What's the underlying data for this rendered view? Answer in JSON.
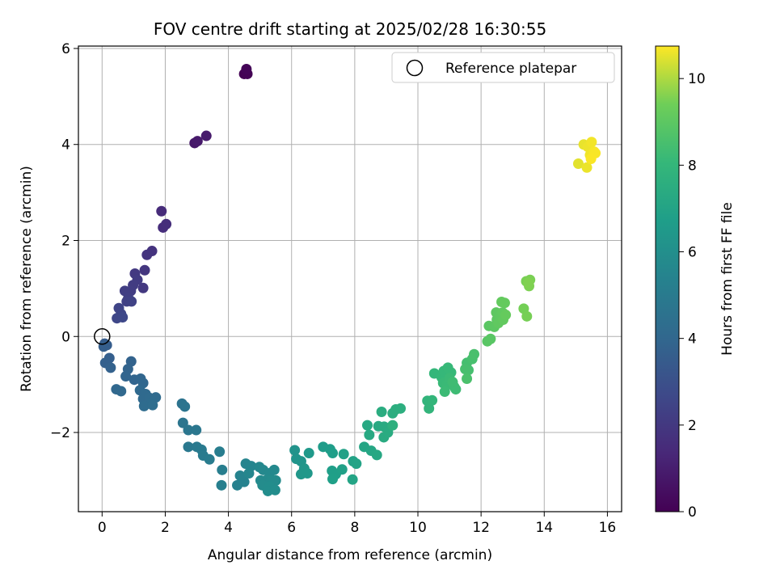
{
  "chart_data": {
    "type": "scatter",
    "title": "FOV centre drift starting at 2025/02/28 16:30:55",
    "xlabel": "Angular distance from reference (arcmin)",
    "ylabel": "Rotation from reference (arcmin)",
    "xlim": [
      -0.75,
      16.45
    ],
    "ylim": [
      -3.65,
      6.05
    ],
    "xticks": [
      0,
      2,
      4,
      6,
      8,
      10,
      12,
      14,
      16
    ],
    "yticks": [
      -2,
      0,
      2,
      4,
      6
    ],
    "grid": true,
    "legend": {
      "position": "top-right",
      "entries": [
        "Reference platepar"
      ]
    },
    "reference_point": {
      "x": 0,
      "y": 0,
      "label": "Reference platepar"
    },
    "colorbar": {
      "label": "Hours from first FF file",
      "min": 0,
      "max": 10.75,
      "ticks": [
        0,
        2,
        4,
        6,
        8,
        10
      ],
      "colormap": "viridis"
    },
    "points": [
      {
        "x": 4.5,
        "y": 5.47,
        "c": 0.0
      },
      {
        "x": 4.6,
        "y": 5.47,
        "c": 0.05
      },
      {
        "x": 4.57,
        "y": 5.57,
        "c": 0.1
      },
      {
        "x": 2.93,
        "y": 4.03,
        "c": 0.8
      },
      {
        "x": 3.02,
        "y": 4.07,
        "c": 0.85
      },
      {
        "x": 3.3,
        "y": 4.18,
        "c": 0.9
      },
      {
        "x": 1.88,
        "y": 2.61,
        "c": 1.5
      },
      {
        "x": 1.93,
        "y": 2.27,
        "c": 1.55
      },
      {
        "x": 2.03,
        "y": 2.34,
        "c": 1.6
      },
      {
        "x": 1.58,
        "y": 1.78,
        "c": 1.8
      },
      {
        "x": 1.42,
        "y": 1.7,
        "c": 1.85
      },
      {
        "x": 1.35,
        "y": 1.38,
        "c": 1.9
      },
      {
        "x": 1.3,
        "y": 1.01,
        "c": 2.0
      },
      {
        "x": 1.04,
        "y": 1.31,
        "c": 2.05
      },
      {
        "x": 1.12,
        "y": 1.18,
        "c": 2.1
      },
      {
        "x": 0.98,
        "y": 1.07,
        "c": 2.15
      },
      {
        "x": 0.91,
        "y": 0.95,
        "c": 2.2
      },
      {
        "x": 0.72,
        "y": 0.95,
        "c": 2.25
      },
      {
        "x": 0.83,
        "y": 0.8,
        "c": 2.3
      },
      {
        "x": 0.78,
        "y": 0.73,
        "c": 2.35
      },
      {
        "x": 0.93,
        "y": 0.73,
        "c": 2.4
      },
      {
        "x": 0.53,
        "y": 0.59,
        "c": 2.5
      },
      {
        "x": 0.6,
        "y": 0.47,
        "c": 2.55
      },
      {
        "x": 0.47,
        "y": 0.38,
        "c": 2.6
      },
      {
        "x": 0.65,
        "y": 0.4,
        "c": 2.65
      },
      {
        "x": 0.08,
        "y": -0.15,
        "c": 3.5
      },
      {
        "x": 0.15,
        "y": -0.18,
        "c": 3.55
      },
      {
        "x": 0.05,
        "y": -0.21,
        "c": 3.6
      },
      {
        "x": 0.23,
        "y": -0.45,
        "c": 3.65
      },
      {
        "x": 0.1,
        "y": -0.55,
        "c": 3.7
      },
      {
        "x": 0.27,
        "y": -0.65,
        "c": 3.75
      },
      {
        "x": 0.92,
        "y": -0.52,
        "c": 3.8
      },
      {
        "x": 0.82,
        "y": -0.68,
        "c": 3.85
      },
      {
        "x": 0.75,
        "y": -0.83,
        "c": 3.9
      },
      {
        "x": 1.02,
        "y": -0.9,
        "c": 3.92
      },
      {
        "x": 1.22,
        "y": -0.88,
        "c": 3.95
      },
      {
        "x": 1.3,
        "y": -0.97,
        "c": 4.0
      },
      {
        "x": 0.45,
        "y": -1.1,
        "c": 4.05
      },
      {
        "x": 0.6,
        "y": -1.14,
        "c": 4.08
      },
      {
        "x": 1.2,
        "y": -1.12,
        "c": 4.1
      },
      {
        "x": 1.38,
        "y": -1.2,
        "c": 4.12
      },
      {
        "x": 1.3,
        "y": -1.3,
        "c": 4.15
      },
      {
        "x": 1.5,
        "y": -1.28,
        "c": 4.18
      },
      {
        "x": 1.7,
        "y": -1.27,
        "c": 4.2
      },
      {
        "x": 1.58,
        "y": -1.37,
        "c": 4.22
      },
      {
        "x": 1.33,
        "y": -1.45,
        "c": 4.25
      },
      {
        "x": 1.6,
        "y": -1.43,
        "c": 4.28
      },
      {
        "x": 2.53,
        "y": -1.4,
        "c": 4.6
      },
      {
        "x": 2.62,
        "y": -1.46,
        "c": 4.65
      },
      {
        "x": 2.56,
        "y": -1.8,
        "c": 4.7
      },
      {
        "x": 2.73,
        "y": -1.95,
        "c": 4.75
      },
      {
        "x": 2.98,
        "y": -1.95,
        "c": 4.8
      },
      {
        "x": 2.73,
        "y": -2.3,
        "c": 4.85
      },
      {
        "x": 3.0,
        "y": -2.3,
        "c": 4.9
      },
      {
        "x": 3.15,
        "y": -2.36,
        "c": 4.95
      },
      {
        "x": 3.2,
        "y": -2.48,
        "c": 5.0
      },
      {
        "x": 3.4,
        "y": -2.56,
        "c": 5.05
      },
      {
        "x": 3.72,
        "y": -2.4,
        "c": 5.1
      },
      {
        "x": 3.8,
        "y": -2.78,
        "c": 5.15
      },
      {
        "x": 3.78,
        "y": -3.1,
        "c": 5.2
      },
      {
        "x": 4.28,
        "y": -3.1,
        "c": 5.3
      },
      {
        "x": 4.5,
        "y": -3.03,
        "c": 5.35
      },
      {
        "x": 4.37,
        "y": -2.9,
        "c": 5.4
      },
      {
        "x": 4.55,
        "y": -2.65,
        "c": 5.45
      },
      {
        "x": 4.72,
        "y": -2.7,
        "c": 5.5
      },
      {
        "x": 4.65,
        "y": -2.85,
        "c": 5.55
      },
      {
        "x": 4.98,
        "y": -2.72,
        "c": 5.6
      },
      {
        "x": 5.1,
        "y": -2.78,
        "c": 5.65
      },
      {
        "x": 5.3,
        "y": -2.85,
        "c": 5.7
      },
      {
        "x": 5.45,
        "y": -2.78,
        "c": 5.72
      },
      {
        "x": 5.02,
        "y": -3.0,
        "c": 5.75
      },
      {
        "x": 5.18,
        "y": -3.0,
        "c": 5.78
      },
      {
        "x": 5.35,
        "y": -3.0,
        "c": 5.8
      },
      {
        "x": 5.5,
        "y": -3.0,
        "c": 5.82
      },
      {
        "x": 5.08,
        "y": -3.1,
        "c": 5.85
      },
      {
        "x": 5.3,
        "y": -3.12,
        "c": 5.88
      },
      {
        "x": 5.25,
        "y": -3.22,
        "c": 5.9
      },
      {
        "x": 5.48,
        "y": -3.2,
        "c": 5.92
      },
      {
        "x": 6.1,
        "y": -2.37,
        "c": 6.2
      },
      {
        "x": 6.15,
        "y": -2.55,
        "c": 6.25
      },
      {
        "x": 6.3,
        "y": -2.6,
        "c": 6.3
      },
      {
        "x": 6.4,
        "y": -2.75,
        "c": 6.35
      },
      {
        "x": 6.3,
        "y": -2.87,
        "c": 6.4
      },
      {
        "x": 6.5,
        "y": -2.85,
        "c": 6.45
      },
      {
        "x": 6.55,
        "y": -2.43,
        "c": 6.5
      },
      {
        "x": 7.0,
        "y": -2.3,
        "c": 6.6
      },
      {
        "x": 7.22,
        "y": -2.35,
        "c": 6.65
      },
      {
        "x": 7.3,
        "y": -2.43,
        "c": 6.7
      },
      {
        "x": 7.28,
        "y": -2.8,
        "c": 6.75
      },
      {
        "x": 7.4,
        "y": -2.87,
        "c": 6.78
      },
      {
        "x": 7.3,
        "y": -2.97,
        "c": 6.8
      },
      {
        "x": 7.6,
        "y": -2.77,
        "c": 6.85
      },
      {
        "x": 7.65,
        "y": -2.45,
        "c": 6.9
      },
      {
        "x": 7.95,
        "y": -2.6,
        "c": 6.95
      },
      {
        "x": 8.05,
        "y": -2.65,
        "c": 7.0
      },
      {
        "x": 7.93,
        "y": -2.98,
        "c": 7.02
      },
      {
        "x": 8.3,
        "y": -2.3,
        "c": 7.1
      },
      {
        "x": 8.52,
        "y": -2.38,
        "c": 7.15
      },
      {
        "x": 8.7,
        "y": -2.47,
        "c": 7.2
      },
      {
        "x": 8.4,
        "y": -1.85,
        "c": 7.25
      },
      {
        "x": 8.46,
        "y": -2.05,
        "c": 7.28
      },
      {
        "x": 8.75,
        "y": -1.87,
        "c": 7.3
      },
      {
        "x": 8.93,
        "y": -1.88,
        "c": 7.35
      },
      {
        "x": 8.92,
        "y": -2.1,
        "c": 7.38
      },
      {
        "x": 9.05,
        "y": -2.0,
        "c": 7.4
      },
      {
        "x": 8.85,
        "y": -1.57,
        "c": 7.45
      },
      {
        "x": 9.2,
        "y": -1.6,
        "c": 7.5
      },
      {
        "x": 9.3,
        "y": -1.52,
        "c": 7.55
      },
      {
        "x": 9.45,
        "y": -1.5,
        "c": 7.6
      },
      {
        "x": 9.2,
        "y": -1.85,
        "c": 7.62
      },
      {
        "x": 10.3,
        "y": -1.34,
        "c": 7.9
      },
      {
        "x": 10.35,
        "y": -1.5,
        "c": 7.92
      },
      {
        "x": 10.45,
        "y": -1.33,
        "c": 7.95
      },
      {
        "x": 10.52,
        "y": -0.77,
        "c": 8.0
      },
      {
        "x": 10.75,
        "y": -0.85,
        "c": 8.05
      },
      {
        "x": 10.82,
        "y": -0.72,
        "c": 8.08
      },
      {
        "x": 10.95,
        "y": -0.65,
        "c": 8.1
      },
      {
        "x": 11.05,
        "y": -0.75,
        "c": 8.12
      },
      {
        "x": 10.8,
        "y": -0.97,
        "c": 8.15
      },
      {
        "x": 10.92,
        "y": -1.0,
        "c": 8.18
      },
      {
        "x": 11.0,
        "y": -0.87,
        "c": 8.2
      },
      {
        "x": 10.85,
        "y": -1.15,
        "c": 8.22
      },
      {
        "x": 11.15,
        "y": -1.05,
        "c": 8.25
      },
      {
        "x": 11.2,
        "y": -1.1,
        "c": 8.28
      },
      {
        "x": 11.1,
        "y": -0.95,
        "c": 8.3
      },
      {
        "x": 11.55,
        "y": -0.55,
        "c": 8.45
      },
      {
        "x": 11.6,
        "y": -0.7,
        "c": 8.48
      },
      {
        "x": 11.5,
        "y": -0.68,
        "c": 8.5
      },
      {
        "x": 11.72,
        "y": -0.47,
        "c": 8.52
      },
      {
        "x": 11.78,
        "y": -0.37,
        "c": 8.55
      },
      {
        "x": 11.55,
        "y": -0.88,
        "c": 8.58
      },
      {
        "x": 12.2,
        "y": -0.1,
        "c": 8.9
      },
      {
        "x": 12.3,
        "y": -0.05,
        "c": 8.92
      },
      {
        "x": 12.25,
        "y": 0.22,
        "c": 8.95
      },
      {
        "x": 12.42,
        "y": 0.2,
        "c": 8.98
      },
      {
        "x": 12.5,
        "y": 0.35,
        "c": 9.0
      },
      {
        "x": 12.48,
        "y": 0.5,
        "c": 9.02
      },
      {
        "x": 12.6,
        "y": 0.42,
        "c": 9.05
      },
      {
        "x": 12.55,
        "y": 0.28,
        "c": 9.08
      },
      {
        "x": 12.68,
        "y": 0.5,
        "c": 9.1
      },
      {
        "x": 12.7,
        "y": 0.35,
        "c": 9.12
      },
      {
        "x": 12.65,
        "y": 0.72,
        "c": 9.15
      },
      {
        "x": 12.75,
        "y": 0.7,
        "c": 9.18
      },
      {
        "x": 12.78,
        "y": 0.45,
        "c": 9.2
      },
      {
        "x": 13.35,
        "y": 0.58,
        "c": 9.45
      },
      {
        "x": 13.45,
        "y": 0.42,
        "c": 9.48
      },
      {
        "x": 13.43,
        "y": 1.15,
        "c": 9.5
      },
      {
        "x": 13.55,
        "y": 1.18,
        "c": 9.52
      },
      {
        "x": 13.52,
        "y": 1.05,
        "c": 9.55
      },
      {
        "x": 13.5,
        "y": 1.12,
        "c": 9.58
      },
      {
        "x": 15.08,
        "y": 3.6,
        "c": 10.5
      },
      {
        "x": 15.25,
        "y": 4.0,
        "c": 10.55
      },
      {
        "x": 15.35,
        "y": 3.52,
        "c": 10.58
      },
      {
        "x": 15.38,
        "y": 3.95,
        "c": 10.6
      },
      {
        "x": 15.45,
        "y": 3.78,
        "c": 10.62
      },
      {
        "x": 15.5,
        "y": 4.05,
        "c": 10.65
      },
      {
        "x": 15.58,
        "y": 3.85,
        "c": 10.68
      },
      {
        "x": 15.62,
        "y": 3.82,
        "c": 10.7
      },
      {
        "x": 15.48,
        "y": 3.7,
        "c": 10.72
      }
    ]
  }
}
